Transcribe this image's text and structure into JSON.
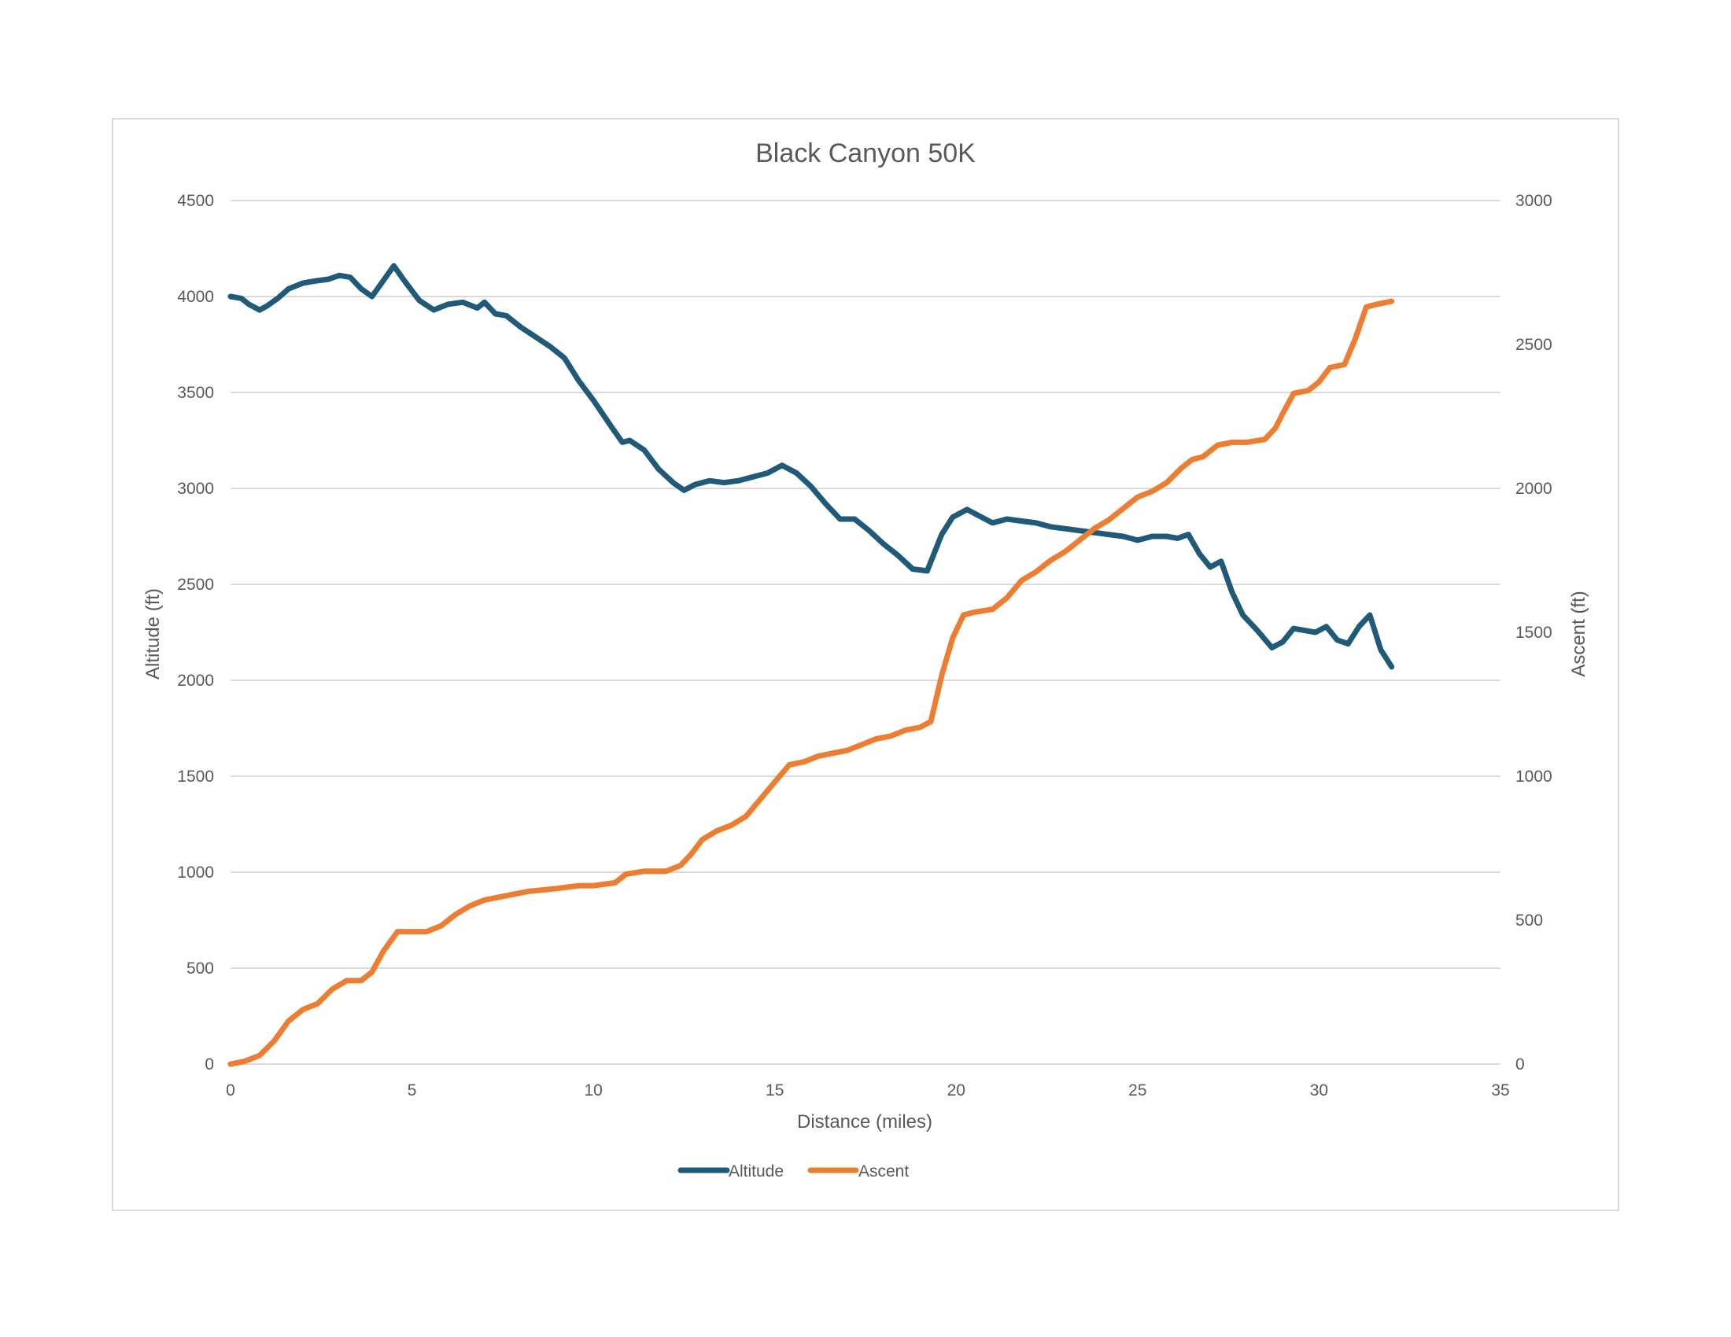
{
  "chart_data": {
    "type": "line",
    "title": "Black Canyon 50K",
    "xlabel": "Distance (miles)",
    "ylabel": "Altitude (ft)",
    "y2label": "Ascent (ft)",
    "xlim": [
      0,
      35
    ],
    "ylim": [
      0,
      4500
    ],
    "y2lim": [
      0,
      3000
    ],
    "x_ticks": [
      "0",
      "5",
      "10",
      "15",
      "20",
      "25",
      "30",
      "35"
    ],
    "y_ticks": [
      "0",
      "500",
      "1000",
      "1500",
      "2000",
      "2500",
      "3000",
      "3500",
      "4000",
      "4500"
    ],
    "y2_ticks": [
      "0",
      "500",
      "1000",
      "1500",
      "2000",
      "2500",
      "3000"
    ],
    "grid": true,
    "legend_position": "bottom",
    "series": [
      {
        "name": "Altitude",
        "axis": "left",
        "color": "#1f5b79",
        "x": [
          0,
          0.3,
          0.5,
          0.8,
          1.0,
          1.3,
          1.6,
          2.0,
          2.3,
          2.7,
          3.0,
          3.3,
          3.6,
          3.9,
          4.2,
          4.5,
          4.8,
          5.2,
          5.6,
          6.0,
          6.4,
          6.8,
          7.0,
          7.3,
          7.6,
          8.0,
          8.4,
          8.8,
          9.2,
          9.6,
          10.0,
          10.5,
          10.8,
          11.0,
          11.4,
          11.8,
          12.2,
          12.5,
          12.8,
          13.2,
          13.6,
          14.0,
          14.4,
          14.8,
          15.2,
          15.6,
          16.0,
          16.4,
          16.8,
          17.2,
          17.6,
          18.0,
          18.4,
          18.8,
          19.2,
          19.6,
          19.9,
          20.3,
          20.6,
          21.0,
          21.4,
          21.8,
          22.2,
          22.6,
          23.0,
          23.4,
          23.8,
          24.2,
          24.6,
          25.0,
          25.4,
          25.8,
          26.1,
          26.4,
          26.7,
          27.0,
          27.3,
          27.6,
          27.9,
          28.3,
          28.7,
          29.0,
          29.3,
          29.6,
          29.9,
          30.2,
          30.5,
          30.8,
          31.1,
          31.4,
          31.7,
          32.0
        ],
        "values": [
          4000,
          3990,
          3960,
          3930,
          3950,
          3990,
          4040,
          4070,
          4080,
          4090,
          4110,
          4100,
          4040,
          4000,
          4080,
          4160,
          4080,
          3980,
          3930,
          3960,
          3970,
          3940,
          3970,
          3910,
          3900,
          3840,
          3790,
          3740,
          3680,
          3560,
          3460,
          3320,
          3240,
          3250,
          3200,
          3100,
          3030,
          2990,
          3020,
          3040,
          3030,
          3040,
          3060,
          3080,
          3120,
          3080,
          3010,
          2920,
          2840,
          2840,
          2780,
          2710,
          2650,
          2580,
          2570,
          2760,
          2850,
          2890,
          2860,
          2820,
          2840,
          2830,
          2820,
          2800,
          2790,
          2780,
          2770,
          2760,
          2750,
          2730,
          2750,
          2750,
          2740,
          2760,
          2660,
          2590,
          2620,
          2460,
          2340,
          2260,
          2170,
          2200,
          2270,
          2260,
          2250,
          2280,
          2210,
          2190,
          2280,
          2340,
          2160,
          2070
        ]
      },
      {
        "name": "Ascent",
        "axis": "right",
        "color": "#ed7d31",
        "x": [
          0,
          0.4,
          0.8,
          1.2,
          1.6,
          2.0,
          2.4,
          2.8,
          3.2,
          3.6,
          3.9,
          4.2,
          4.6,
          5.0,
          5.4,
          5.8,
          6.2,
          6.6,
          7.0,
          7.4,
          7.8,
          8.2,
          8.6,
          9.0,
          9.6,
          10.0,
          10.6,
          10.9,
          11.4,
          12.0,
          12.4,
          12.7,
          13.0,
          13.4,
          13.8,
          14.2,
          14.6,
          15.0,
          15.4,
          15.8,
          16.2,
          16.6,
          17.0,
          17.4,
          17.8,
          18.2,
          18.6,
          19.0,
          19.3,
          19.6,
          19.9,
          20.2,
          20.5,
          21.0,
          21.4,
          21.8,
          22.2,
          22.6,
          23.0,
          23.4,
          23.8,
          24.2,
          24.6,
          25.0,
          25.4,
          25.8,
          26.2,
          26.5,
          26.8,
          27.2,
          27.6,
          28.0,
          28.5,
          28.8,
          29.0,
          29.3,
          29.7,
          30.0,
          30.3,
          30.7,
          31.0,
          31.3,
          31.6,
          32.0
        ],
        "values": [
          0,
          10,
          30,
          80,
          150,
          190,
          210,
          260,
          290,
          290,
          320,
          390,
          460,
          460,
          460,
          480,
          520,
          550,
          570,
          580,
          590,
          600,
          605,
          610,
          620,
          620,
          630,
          660,
          670,
          670,
          690,
          730,
          780,
          810,
          830,
          860,
          920,
          980,
          1040,
          1050,
          1070,
          1080,
          1090,
          1110,
          1130,
          1140,
          1160,
          1170,
          1190,
          1350,
          1480,
          1560,
          1570,
          1580,
          1620,
          1680,
          1710,
          1750,
          1780,
          1820,
          1860,
          1890,
          1930,
          1970,
          1990,
          2020,
          2070,
          2100,
          2110,
          2150,
          2160,
          2160,
          2170,
          2210,
          2260,
          2330,
          2340,
          2370,
          2420,
          2430,
          2520,
          2630,
          2640,
          2650
        ]
      }
    ]
  }
}
